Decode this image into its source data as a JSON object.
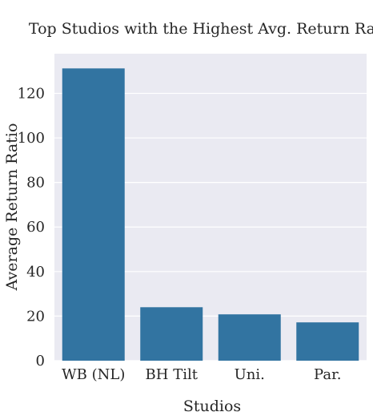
{
  "chart_data": {
    "type": "bar",
    "title": "Top Studios with the Highest Avg. Return Ratio",
    "xlabel": "Studios",
    "ylabel": "Average Return Ratio",
    "categories": [
      "WB (NL)",
      "BH Tilt",
      "Uni.",
      "Par."
    ],
    "values": [
      131.2,
      24.0,
      20.8,
      17.2
    ],
    "ylim": [
      0,
      137.8
    ],
    "yticks": [
      0,
      20,
      40,
      60,
      80,
      100,
      120
    ],
    "grid": true,
    "bar_color": "#3274a1",
    "plot_background": "#eaeaf2",
    "legend": "none"
  }
}
